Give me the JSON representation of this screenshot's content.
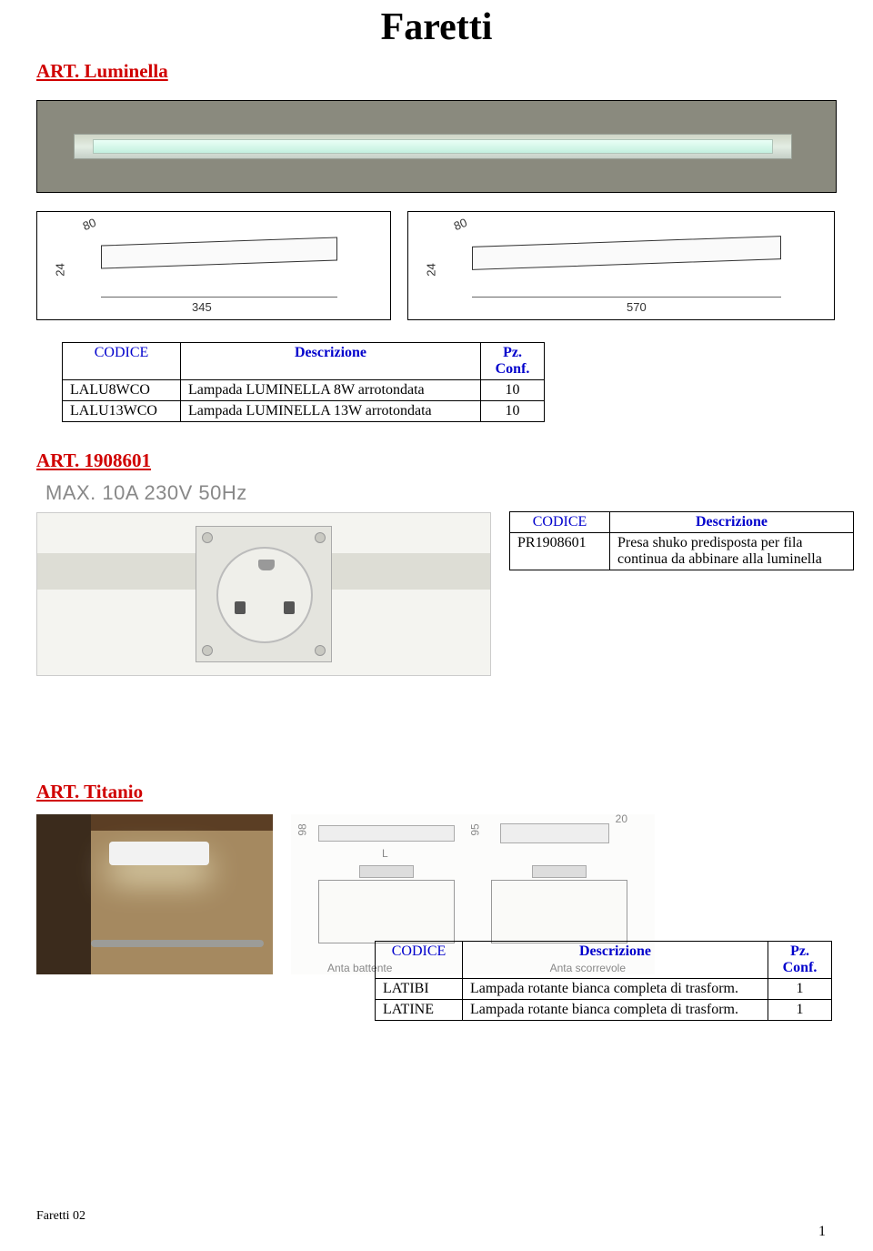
{
  "page_title": "Faretti",
  "footer_label": "Faretti 02",
  "page_number": "1",
  "headers": {
    "codice": "CODICE",
    "descrizione": "Descrizione",
    "pz_conf_line1": "Pz.",
    "pz_conf_line2": "Conf."
  },
  "section1": {
    "heading": "ART. Luminella",
    "diagram": {
      "left": {
        "w80": "80",
        "h24": "24",
        "len": "345"
      },
      "right": {
        "w80": "80",
        "h24": "24",
        "len": "570"
      }
    },
    "rows": [
      {
        "code": "LALU8WCO",
        "desc": "Lampada LUMINELLA 8W arrotondata",
        "pz": "10"
      },
      {
        "code": "LALU13WCO",
        "desc": "Lampada LUMINELLA 13W arrotondata",
        "pz": "10"
      }
    ]
  },
  "section2": {
    "heading": "ART. 1908601",
    "max_label": "MAX. 10A 230V 50Hz",
    "rows": [
      {
        "code": "PR1908601",
        "desc": "Presa shuko predisposta per fila continua da abbinare alla luminella"
      }
    ]
  },
  "section3": {
    "heading": "ART. Titanio",
    "diagram": {
      "d98": "98",
      "d95": "95",
      "d20": "20",
      "dL": "L",
      "label_left": "Anta battente",
      "label_right": "Anta scorrevole"
    },
    "rows": [
      {
        "code": "LATIBI",
        "desc": "Lampada rotante bianca completa di trasform.",
        "pz": "1"
      },
      {
        "code": "LATINE",
        "desc": "Lampada rotante bianca completa di trasform.",
        "pz": "1"
      }
    ]
  },
  "colors": {
    "heading": "#d00000",
    "table_header": "#0000cc",
    "border": "#000000",
    "diagram_text": "#888888"
  }
}
